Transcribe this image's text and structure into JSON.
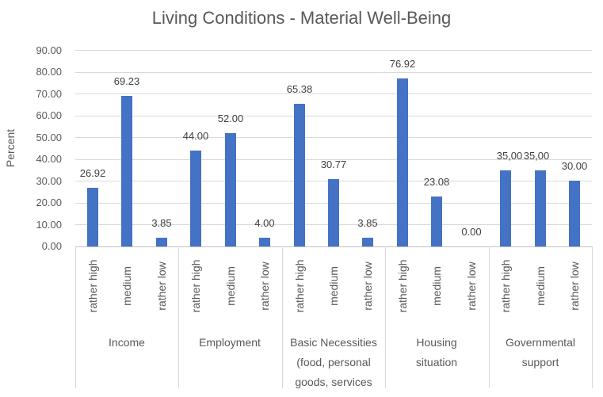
{
  "chart_data": {
    "type": "bar",
    "title": "Living Conditions - Material Well-Being",
    "ylabel": "Percent",
    "ylim": [
      0,
      90
    ],
    "ytick_step": 10,
    "ytick_labels": [
      "0.00",
      "10.00",
      "20.00",
      "30.00",
      "40.00",
      "50.00",
      "60.00",
      "70.00",
      "80.00",
      "90.00"
    ],
    "grid": true,
    "legend": false,
    "subcategories": [
      "rather high",
      "medium",
      "rather low"
    ],
    "groups": [
      {
        "category": "Income",
        "values": [
          26.92,
          69.23,
          3.85
        ],
        "labels": [
          "26.92",
          "69.23",
          "3.85"
        ]
      },
      {
        "category": "Employment",
        "values": [
          44.0,
          52.0,
          4.0
        ],
        "labels": [
          "44.00",
          "52.00",
          "4.00"
        ]
      },
      {
        "category": "Basic Necessities\n(food, personal\ngoods, services",
        "values": [
          65.38,
          30.77,
          3.85
        ],
        "labels": [
          "65.38",
          "30.77",
          "3.85"
        ]
      },
      {
        "category": "Housing\nsituation",
        "values": [
          76.92,
          23.08,
          0.0
        ],
        "labels": [
          "76.92",
          "23.08",
          "0.00"
        ]
      },
      {
        "category": "Governmental\nsupport",
        "values": [
          35.0,
          35.0,
          30.0
        ],
        "labels": [
          "35,00",
          "35,00",
          "30.00"
        ]
      }
    ],
    "colors": {
      "bar": "#4472C4",
      "gridline": "#D9D9D9",
      "axis_line": "#BFBFBF",
      "separator": "#D9D9D9",
      "title_text": "#595959",
      "axis_text": "#595959",
      "value_label_text": "#404040"
    }
  }
}
